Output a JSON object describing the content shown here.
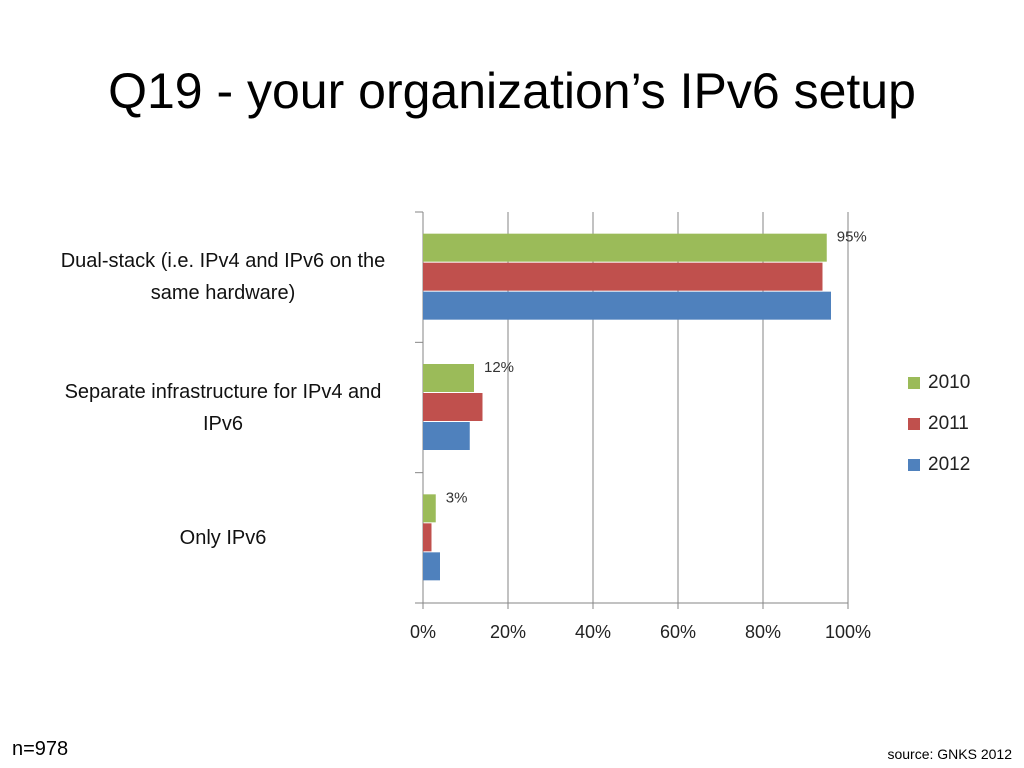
{
  "chart_data": {
    "type": "bar",
    "orientation": "horizontal",
    "title": "Q19 - your organization’s IPv6 setup",
    "categories": [
      "Dual-stack (i.e. IPv4 and IPv6 on the same hardware)",
      "Separate infrastructure for IPv4 and IPv6",
      "Only IPv6"
    ],
    "series": [
      {
        "name": "2010",
        "color": "#9bbb59",
        "values": [
          95,
          12,
          3
        ],
        "value_labels": [
          "95%",
          "12%",
          "3%"
        ]
      },
      {
        "name": "2011",
        "color": "#c0504d",
        "values": [
          94,
          14,
          2
        ]
      },
      {
        "name": "2012",
        "color": "#4f81bd",
        "values": [
          96,
          11,
          4
        ]
      }
    ],
    "xlim": [
      0,
      100
    ],
    "xticks": [
      {
        "value": 0,
        "label": "0%"
      },
      {
        "value": 20,
        "label": "20%"
      },
      {
        "value": 40,
        "label": "40%"
      },
      {
        "value": 60,
        "label": "60%"
      },
      {
        "value": 80,
        "label": "80%"
      },
      {
        "value": 100,
        "label": "100%"
      }
    ],
    "grid": true,
    "legend": "right",
    "annotations": [
      "n=978",
      "source: GNKS 2012"
    ]
  }
}
